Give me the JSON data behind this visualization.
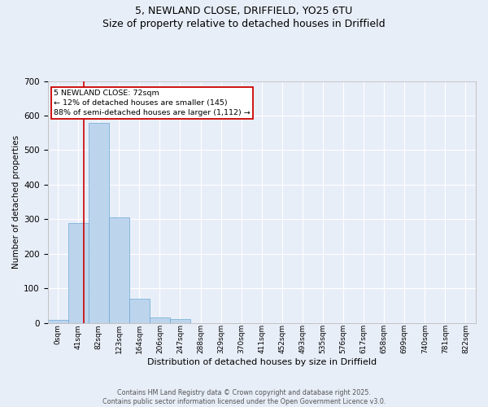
{
  "title_line1": "5, NEWLAND CLOSE, DRIFFIELD, YO25 6TU",
  "title_line2": "Size of property relative to detached houses in Driffield",
  "xlabel": "Distribution of detached houses by size in Driffield",
  "ylabel": "Number of detached properties",
  "footer_line1": "Contains HM Land Registry data © Crown copyright and database right 2025.",
  "footer_line2": "Contains public sector information licensed under the Open Government Licence v3.0.",
  "bin_labels": [
    "0sqm",
    "41sqm",
    "82sqm",
    "123sqm",
    "164sqm",
    "206sqm",
    "247sqm",
    "288sqm",
    "329sqm",
    "370sqm",
    "411sqm",
    "452sqm",
    "493sqm",
    "535sqm",
    "576sqm",
    "617sqm",
    "658sqm",
    "699sqm",
    "740sqm",
    "781sqm",
    "822sqm"
  ],
  "bar_values": [
    8,
    289,
    578,
    305,
    70,
    15,
    10,
    0,
    0,
    0,
    0,
    0,
    0,
    0,
    0,
    0,
    0,
    0,
    0,
    0,
    0
  ],
  "bar_color": "#bdd4ed",
  "bar_edge_color": "#6aaad4",
  "bg_color": "#e8eef8",
  "grid_color": "#ffffff",
  "annotation_text": "5 NEWLAND CLOSE: 72sqm\n← 12% of detached houses are smaller (145)\n88% of semi-detached houses are larger (1,112) →",
  "annotation_box_color": "#ffffff",
  "annotation_box_edge": "#cc0000",
  "ylim": [
    0,
    700
  ],
  "yticks": [
    0,
    100,
    200,
    300,
    400,
    500,
    600,
    700
  ]
}
